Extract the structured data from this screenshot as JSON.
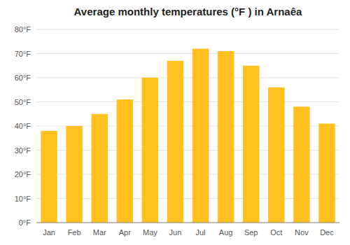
{
  "chart_data": {
    "type": "bar",
    "title": "Average monthly temperatures (°F ) in Arnaêa",
    "categories": [
      "Jan",
      "Feb",
      "Mar",
      "Apr",
      "May",
      "Jun",
      "Jul",
      "Aug",
      "Sep",
      "Oct",
      "Nov",
      "Dec"
    ],
    "values": [
      38,
      40,
      45,
      51,
      60,
      67,
      72,
      71,
      65,
      56,
      48,
      41
    ],
    "color": "#FFC020",
    "ylim": [
      0,
      80
    ],
    "yticks": [
      {
        "value": 0,
        "label": "0°F"
      },
      {
        "value": 10,
        "label": "10°F"
      },
      {
        "value": 20,
        "label": "20°F"
      },
      {
        "value": 30,
        "label": "30°F"
      },
      {
        "value": 40,
        "label": "40°F"
      },
      {
        "value": 50,
        "label": "50°F"
      },
      {
        "value": 60,
        "label": "60°F"
      },
      {
        "value": 70,
        "label": "70°F"
      },
      {
        "value": 80,
        "label": "80°F"
      }
    ],
    "grid": true
  }
}
